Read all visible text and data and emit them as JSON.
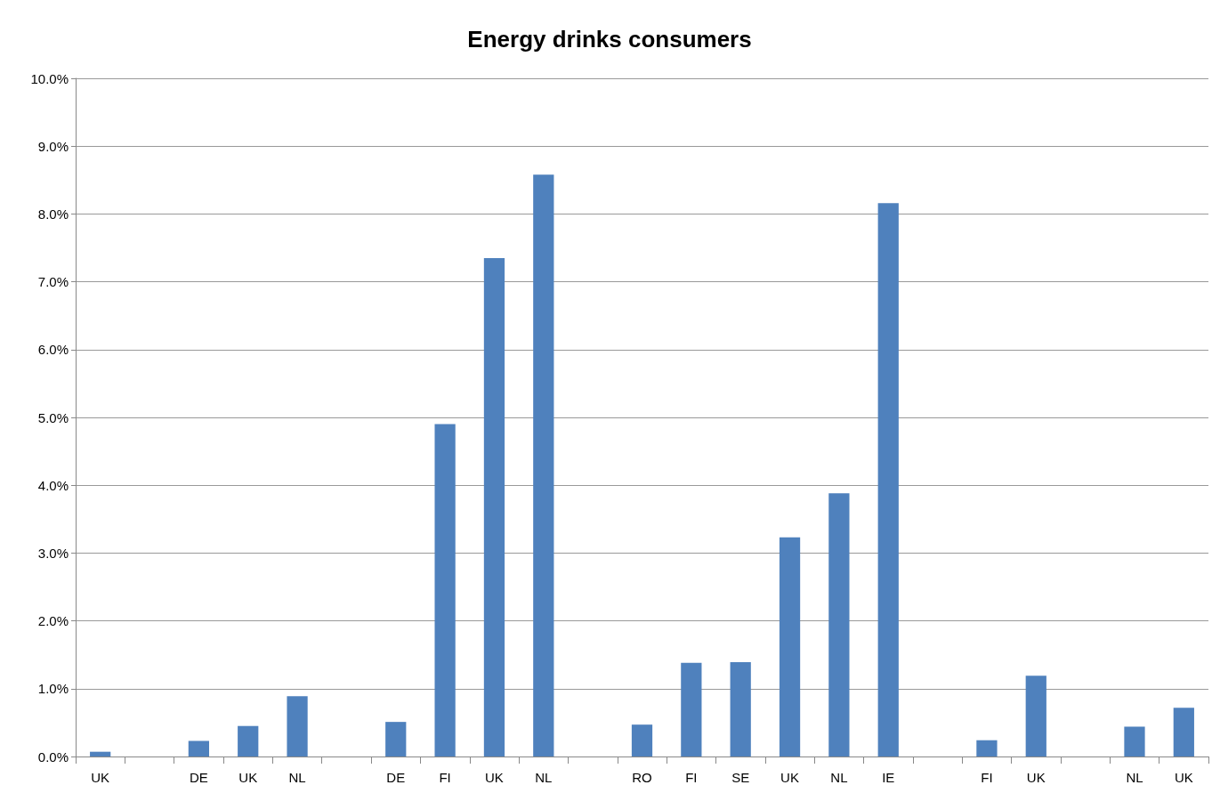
{
  "chart_data": {
    "type": "bar",
    "title": "Energy drinks consumers",
    "categories": [
      "UK",
      null,
      "DE",
      "UK",
      "NL",
      null,
      "DE",
      "FI",
      "UK",
      "NL",
      null,
      "RO",
      "FI",
      "SE",
      "UK",
      "NL",
      "IE",
      null,
      "FI",
      "UK",
      null,
      "NL",
      "UK"
    ],
    "values": [
      0.07,
      null,
      0.23,
      0.45,
      0.89,
      null,
      0.51,
      4.9,
      7.35,
      8.58,
      null,
      0.47,
      1.38,
      1.39,
      3.23,
      3.88,
      8.16,
      null,
      0.24,
      1.19,
      null,
      0.44,
      0.72
    ],
    "color": "#4f81bd",
    "ylim": [
      0,
      10
    ],
    "yticks": [
      {
        "value": 0,
        "label": "0.0%"
      },
      {
        "value": 1,
        "label": "1.0%"
      },
      {
        "value": 2,
        "label": "2.0%"
      },
      {
        "value": 3,
        "label": "3.0%"
      },
      {
        "value": 4,
        "label": "4.0%"
      },
      {
        "value": 5,
        "label": "5.0%"
      },
      {
        "value": 6,
        "label": "6.0%"
      },
      {
        "value": 7,
        "label": "7.0%"
      },
      {
        "value": 8,
        "label": "8.0%"
      },
      {
        "value": 9,
        "label": "9.0%"
      },
      {
        "value": 10,
        "label": "10.0%"
      }
    ],
    "grid": true
  }
}
